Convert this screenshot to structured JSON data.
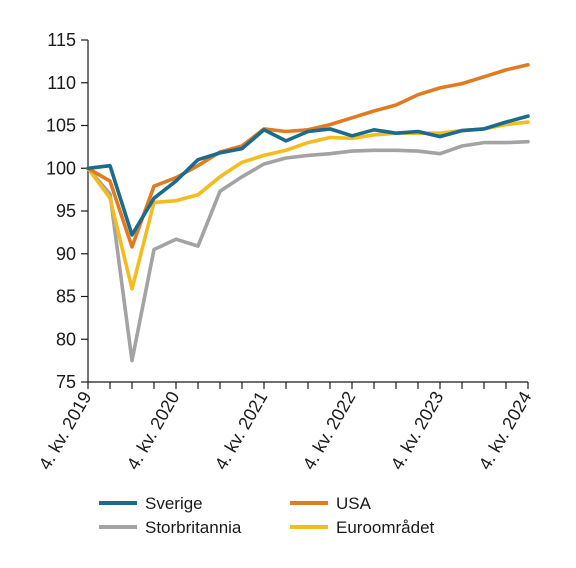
{
  "chart_data": {
    "type": "line",
    "title": "",
    "xlabel": "",
    "ylabel": "",
    "ylim": [
      75,
      115
    ],
    "y_ticks": [
      75,
      80,
      85,
      90,
      95,
      100,
      105,
      110,
      115
    ],
    "x": [
      "2019Q4",
      "2020Q1",
      "2020Q2",
      "2020Q3",
      "2020Q4",
      "2021Q1",
      "2021Q2",
      "2021Q3",
      "2021Q4",
      "2022Q1",
      "2022Q2",
      "2022Q3",
      "2022Q4",
      "2023Q1",
      "2023Q2",
      "2023Q3",
      "2023Q4",
      "2024Q1",
      "2024Q2",
      "2024Q3",
      "2024Q4"
    ],
    "x_tick_labels": [
      {
        "label": "4. kv. 2019",
        "at": "2019Q4"
      },
      {
        "label": "4. kv. 2020",
        "at": "2020Q4"
      },
      {
        "label": "4. kv. 2021",
        "at": "2021Q4"
      },
      {
        "label": "4. kv. 2022",
        "at": "2022Q4"
      },
      {
        "label": "4. kv. 2023",
        "at": "2023Q4"
      },
      {
        "label": "4. kv. 2024",
        "at": "2024Q4"
      }
    ],
    "grid": false,
    "legend_position": "bottom",
    "series": [
      {
        "name": "Sverige",
        "color": "#1a6b8e",
        "values": [
          100,
          100.3,
          92.2,
          96.5,
          98.5,
          101.0,
          101.8,
          102.3,
          104.5,
          103.2,
          104.3,
          104.6,
          103.8,
          104.5,
          104.1,
          104.3,
          103.7,
          104.4,
          104.6,
          105.4,
          106.1
        ]
      },
      {
        "name": "USA",
        "color": "#e07b1f",
        "values": [
          100,
          98.5,
          90.8,
          97.9,
          98.9,
          100.3,
          101.9,
          102.6,
          104.6,
          104.3,
          104.5,
          105.1,
          105.9,
          106.7,
          107.4,
          108.6,
          109.4,
          109.9,
          110.7,
          111.5,
          112.1
        ]
      },
      {
        "name": "Storbritannia",
        "color": "#a3a3a3",
        "values": [
          100,
          97.0,
          77.5,
          90.5,
          91.7,
          90.9,
          97.3,
          99.0,
          100.5,
          101.2,
          101.5,
          101.7,
          102.0,
          102.1,
          102.1,
          102.0,
          101.7,
          102.6,
          103.0,
          103.0,
          103.1
        ]
      },
      {
        "name": "Euroområdet",
        "color": "#f5bc1d",
        "values": [
          100,
          96.5,
          85.9,
          96.0,
          96.2,
          96.9,
          99.0,
          100.7,
          101.5,
          102.1,
          103.0,
          103.6,
          103.5,
          103.9,
          104.1,
          104.1,
          104.1,
          104.4,
          104.6,
          105.1,
          105.4
        ]
      }
    ]
  }
}
